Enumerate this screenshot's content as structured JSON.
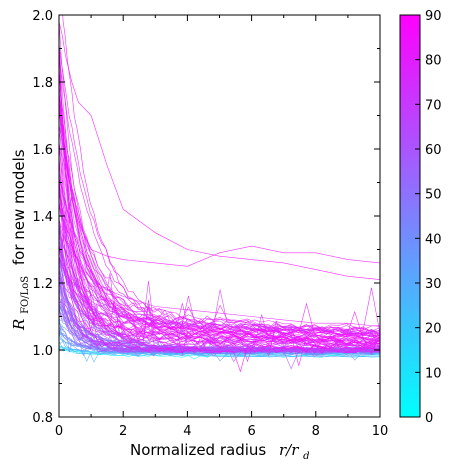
{
  "chart_data": {
    "type": "line",
    "xlabel": "Normalized radius",
    "xlabel_math": "r/r",
    "xlabel_math_sub": "d",
    "ylabel_main": "R",
    "ylabel_sub": "FO/LoS",
    "ylabel_rest": "for new models",
    "xlim": [
      0,
      10
    ],
    "ylim": [
      0.8,
      2.0
    ],
    "xticks": [
      "0",
      "2",
      "4",
      "6",
      "8",
      "10"
    ],
    "yticks": [
      "0.8",
      "1.0",
      "1.2",
      "1.4",
      "1.6",
      "1.8",
      "2.0"
    ],
    "grid": false,
    "colorbar": {
      "ticks": [
        "0",
        "10",
        "20",
        "30",
        "40",
        "50",
        "60",
        "70",
        "80",
        "90"
      ],
      "range": [
        0,
        90
      ],
      "colormap": "cool",
      "color_low": "#00ffff",
      "color_high": "#ff00ff"
    },
    "series_count": 120,
    "x": [
      0,
      0.1,
      0.2,
      0.4,
      0.6,
      0.8,
      1.0,
      1.5,
      2.0,
      3.0,
      4.0,
      5.0,
      6.0,
      7.0,
      8.0,
      9.0,
      10.0
    ],
    "example_series": [
      {
        "inclination": 88,
        "values": [
          1.98,
          1.94,
          1.88,
          1.8,
          1.74,
          1.72,
          1.7,
          1.55,
          1.42,
          1.35,
          1.3,
          1.28,
          1.27,
          1.26,
          1.24,
          1.22,
          1.21
        ]
      },
      {
        "inclination": 85,
        "values": [
          1.84,
          1.7,
          1.58,
          1.45,
          1.38,
          1.34,
          1.3,
          1.28,
          1.27,
          1.26,
          1.25,
          1.29,
          1.31,
          1.29,
          1.29,
          1.27,
          1.26
        ]
      },
      {
        "inclination": 80,
        "values": [
          1.76,
          1.55,
          1.45,
          1.34,
          1.28,
          1.24,
          1.21,
          1.18,
          1.16,
          1.13,
          1.12,
          1.11,
          1.1,
          1.09,
          1.08,
          1.08,
          1.07
        ]
      },
      {
        "inclination": 60,
        "values": [
          1.4,
          1.22,
          1.14,
          1.08,
          1.05,
          1.04,
          1.03,
          1.02,
          1.02,
          1.01,
          1.01,
          1.01,
          1.01,
          1.0,
          1.0,
          1.0,
          1.0
        ]
      },
      {
        "inclination": 30,
        "values": [
          1.1,
          1.03,
          1.01,
          1.0,
          0.99,
          0.99,
          0.99,
          0.99,
          0.99,
          0.99,
          0.99,
          0.98,
          0.98,
          0.98,
          0.98,
          0.98,
          0.98
        ]
      }
    ]
  }
}
